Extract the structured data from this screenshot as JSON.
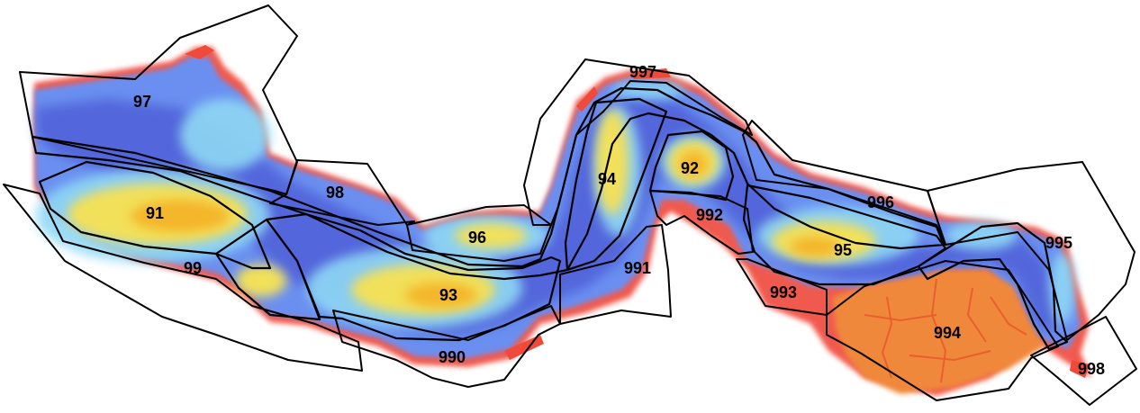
{
  "map": {
    "zones": [
      {
        "id": "z91",
        "label": "91"
      },
      {
        "id": "z92",
        "label": "92"
      },
      {
        "id": "z93",
        "label": "93"
      },
      {
        "id": "z94",
        "label": "94"
      },
      {
        "id": "z95",
        "label": "95"
      },
      {
        "id": "z96",
        "label": "96"
      },
      {
        "id": "z97",
        "label": "97"
      },
      {
        "id": "z98",
        "label": "98"
      },
      {
        "id": "z99",
        "label": "99"
      },
      {
        "id": "z990",
        "label": "990"
      },
      {
        "id": "z991",
        "label": "991"
      },
      {
        "id": "z992",
        "label": "992"
      },
      {
        "id": "z993",
        "label": "993"
      },
      {
        "id": "z994",
        "label": "994"
      },
      {
        "id": "z995",
        "label": "995"
      },
      {
        "id": "z996",
        "label": "996"
      },
      {
        "id": "z997",
        "label": "997"
      },
      {
        "id": "z998",
        "label": "998"
      }
    ],
    "colors": {
      "deep_water": "#5b6fe0",
      "mid_water": "#6fa0f0",
      "shallow_water": "#8fd8f4",
      "sand_bar": "#f2e05a",
      "bar_core": "#f4b62a",
      "marsh": "#f08a3a",
      "high_marsh": "#e8542a",
      "edge": "#ef4a3a",
      "outline": "#000000",
      "background": "#ffffff"
    }
  }
}
